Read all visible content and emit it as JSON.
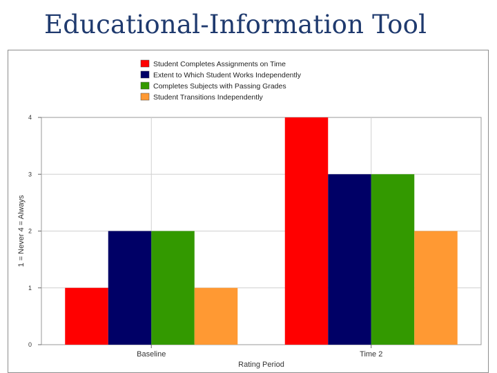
{
  "slide": {
    "title": "Educational-Information Tool"
  },
  "chart_data": {
    "type": "bar",
    "title": "",
    "xlabel": "Rating Period",
    "ylabel": "1 = Never   4 = Always",
    "categories": [
      "Baseline",
      "Time 2"
    ],
    "ylim": [
      0,
      4
    ],
    "yticks": [
      0,
      1,
      2,
      3,
      4
    ],
    "grid": true,
    "legend_position": "top",
    "series": [
      {
        "name": "Student Completes Assignments on Time",
        "values": [
          1,
          4
        ],
        "color": "#ff0000"
      },
      {
        "name": "Extent to Which Student Works Independently",
        "values": [
          2,
          3
        ],
        "color": "#000066"
      },
      {
        "name": "Completes Subjects with Passing Grades",
        "values": [
          2,
          3
        ],
        "color": "#339900"
      },
      {
        "name": "Student Transitions Independently",
        "values": [
          1,
          2
        ],
        "color": "#ff9933"
      }
    ]
  }
}
